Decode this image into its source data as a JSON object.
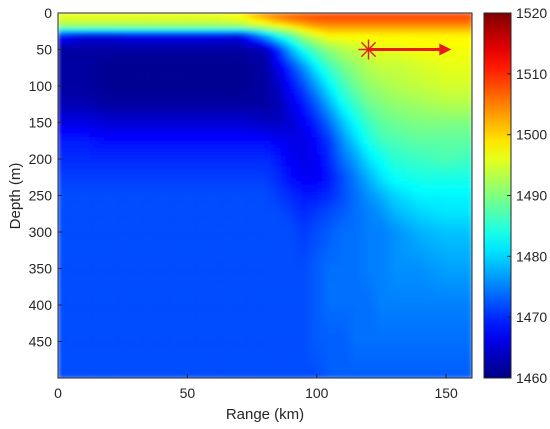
{
  "chart_data": {
    "type": "heatmap",
    "title": "",
    "xlabel": "Range (km)",
    "ylabel": "Depth (m)",
    "xlim": [
      0,
      160
    ],
    "ylim": [
      0,
      500
    ],
    "y_direction": "reversed",
    "x_ticks": [
      0,
      50,
      100,
      150
    ],
    "y_ticks": [
      0,
      50,
      100,
      150,
      200,
      250,
      300,
      350,
      400,
      450
    ],
    "colormap": "jet",
    "colorbar": {
      "clim": [
        1460,
        1520
      ],
      "ticks": [
        1460,
        1470,
        1480,
        1490,
        1500,
        1510,
        1520
      ],
      "placement": "right"
    },
    "field_description": "sound speed field in range-depth section",
    "grid_values": {
      "x": [
        0,
        10,
        20,
        30,
        40,
        50,
        60,
        70,
        80,
        85,
        90,
        95,
        100,
        105,
        110,
        115,
        120,
        125,
        130,
        140,
        150,
        160
      ],
      "y": [
        0,
        10,
        20,
        30,
        50,
        75,
        100,
        125,
        150,
        175,
        200,
        225,
        250,
        275,
        300,
        350,
        400,
        450,
        500
      ],
      "z_rows": [
        [
          1497,
          1497,
          1497,
          1497,
          1497,
          1497,
          1497,
          1498,
          1505,
          1506,
          1507,
          1508,
          1508,
          1509,
          1509,
          1509,
          1509,
          1509,
          1509,
          1509,
          1509,
          1509
        ],
        [
          1495,
          1495,
          1495,
          1495,
          1495,
          1495,
          1495,
          1496,
          1500,
          1503,
          1505,
          1506,
          1507,
          1507,
          1507,
          1507,
          1507,
          1507,
          1507,
          1507,
          1507,
          1507
        ],
        [
          1490,
          1490,
          1490,
          1490,
          1490,
          1490,
          1490,
          1490,
          1493,
          1495,
          1497,
          1500,
          1502,
          1503,
          1503,
          1503,
          1503,
          1503,
          1503,
          1503,
          1503,
          1503
        ],
        [
          1469,
          1466,
          1466,
          1467,
          1467,
          1467,
          1467,
          1466,
          1478,
          1484,
          1488,
          1493,
          1496,
          1498,
          1498,
          1498,
          1498,
          1498,
          1498,
          1498,
          1498,
          1498
        ],
        [
          1462,
          1462,
          1462,
          1462,
          1462,
          1462,
          1462,
          1462,
          1463,
          1470,
          1478,
          1484,
          1488,
          1491,
          1493,
          1494,
          1495,
          1496,
          1496,
          1497,
          1497,
          1497
        ],
        [
          1462,
          1462,
          1461,
          1461,
          1461,
          1461,
          1461,
          1461,
          1462,
          1466,
          1471,
          1476,
          1482,
          1486,
          1489,
          1491,
          1493,
          1494,
          1494,
          1495,
          1496,
          1496
        ],
        [
          1462,
          1462,
          1461,
          1461,
          1461,
          1461,
          1461,
          1461,
          1462,
          1464,
          1468,
          1472,
          1477,
          1482,
          1486,
          1489,
          1491,
          1492,
          1493,
          1494,
          1495,
          1495
        ],
        [
          1463,
          1463,
          1462,
          1462,
          1462,
          1462,
          1462,
          1462,
          1462,
          1463,
          1466,
          1469,
          1473,
          1478,
          1483,
          1486,
          1489,
          1490,
          1491,
          1492,
          1493,
          1493
        ],
        [
          1466,
          1466,
          1465,
          1465,
          1465,
          1465,
          1465,
          1465,
          1464,
          1464,
          1465,
          1467,
          1470,
          1474,
          1479,
          1483,
          1486,
          1488,
          1489,
          1490,
          1490,
          1490
        ],
        [
          1469,
          1469,
          1468,
          1468,
          1468,
          1468,
          1468,
          1468,
          1468,
          1467,
          1466,
          1466,
          1468,
          1471,
          1476,
          1480,
          1484,
          1486,
          1487,
          1488,
          1488,
          1488
        ],
        [
          1470,
          1470,
          1470,
          1470,
          1470,
          1470,
          1470,
          1470,
          1470,
          1469,
          1467,
          1466,
          1467,
          1470,
          1474,
          1477,
          1481,
          1483,
          1485,
          1486,
          1487,
          1486
        ],
        [
          1471,
          1471,
          1471,
          1471,
          1471,
          1471,
          1471,
          1471,
          1471,
          1470,
          1468,
          1467,
          1467,
          1469,
          1472,
          1475,
          1478,
          1481,
          1483,
          1484,
          1484,
          1484
        ],
        [
          1472,
          1472,
          1472,
          1472,
          1472,
          1472,
          1472,
          1472,
          1472,
          1471,
          1470,
          1469,
          1469,
          1470,
          1472,
          1474,
          1476,
          1478,
          1480,
          1482,
          1482,
          1482
        ],
        [
          1472,
          1472,
          1472,
          1472,
          1472,
          1472,
          1472,
          1472,
          1472,
          1472,
          1471,
          1470,
          1471,
          1472,
          1473,
          1474,
          1475,
          1476,
          1478,
          1480,
          1481,
          1481
        ],
        [
          1472,
          1472,
          1472,
          1472,
          1472,
          1472,
          1472,
          1472,
          1472,
          1472,
          1472,
          1471,
          1472,
          1473,
          1474,
          1474,
          1475,
          1475,
          1476,
          1478,
          1479,
          1479
        ],
        [
          1472,
          1472,
          1472,
          1472,
          1472,
          1472,
          1472,
          1472,
          1472,
          1472,
          1472,
          1472,
          1473,
          1474,
          1474,
          1474,
          1475,
          1475,
          1476,
          1476,
          1477,
          1477
        ],
        [
          1472,
          1472,
          1472,
          1472,
          1472,
          1472,
          1472,
          1472,
          1472,
          1472,
          1472,
          1472,
          1473,
          1474,
          1474,
          1474,
          1474,
          1475,
          1475,
          1475,
          1475,
          1475
        ],
        [
          1472,
          1472,
          1472,
          1472,
          1472,
          1472,
          1472,
          1472,
          1472,
          1472,
          1472,
          1472,
          1473,
          1473,
          1473,
          1474,
          1474,
          1474,
          1474,
          1474,
          1474,
          1474
        ],
        [
          1472,
          1472,
          1472,
          1472,
          1472,
          1472,
          1472,
          1472,
          1472,
          1472,
          1472,
          1472,
          1472,
          1473,
          1473,
          1473,
          1473,
          1473,
          1473,
          1473,
          1473,
          1473
        ]
      ]
    },
    "annotations": {
      "source_marker": {
        "shape": "asterisk",
        "x_km": 120,
        "depth_m": 50,
        "color": "#e81a1a"
      },
      "direction_arrow": {
        "from_x_km": 120,
        "to_x_km": 152,
        "depth_m": 50,
        "color": "#e81a1a"
      }
    }
  }
}
